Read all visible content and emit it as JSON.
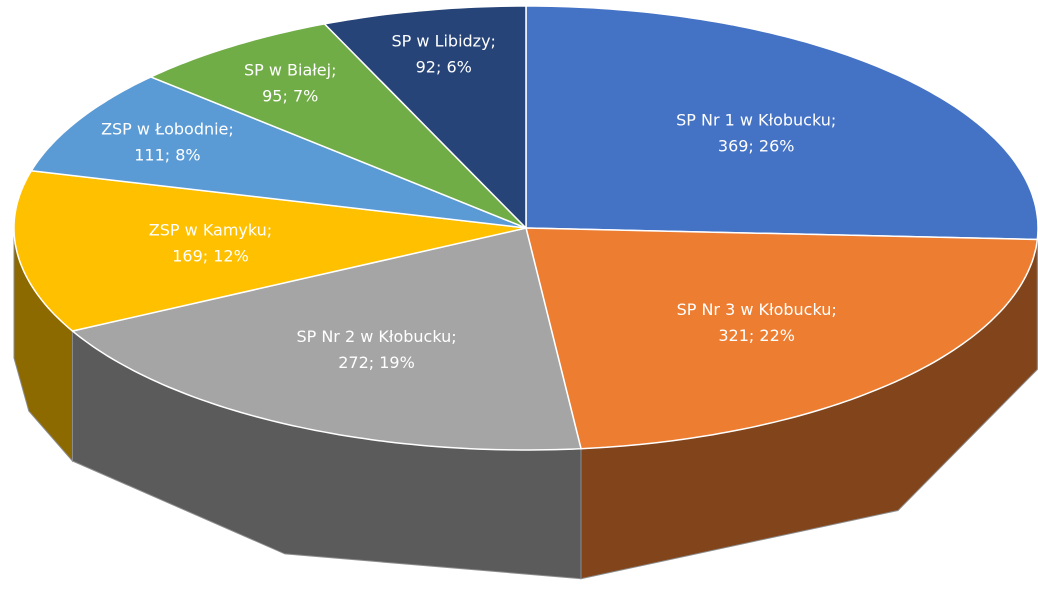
{
  "chart_data": {
    "type": "pie3d",
    "categories": [
      "SP Nr 1 w Kłobucku;",
      "SP Nr 3  w Kłobucku;",
      "SP Nr 2  w Kłobucku;",
      "ZSP w Kamyku;",
      "ZSP w Łobodnie;",
      "SP w Białej;",
      "SP w Libidzy;"
    ],
    "values": [
      369,
      321,
      272,
      169,
      111,
      95,
      92
    ],
    "value_labels": [
      "369; 26%",
      "321; 22%",
      "272; 19%",
      "169; 12%",
      "111; 8%",
      "95; 7%",
      "92; 6%"
    ],
    "colors": [
      "#4472c4",
      "#ed7d31",
      "#a5a5a5",
      "#ffc000",
      "#5b9bd5",
      "#70ad47",
      "#264478"
    ]
  }
}
